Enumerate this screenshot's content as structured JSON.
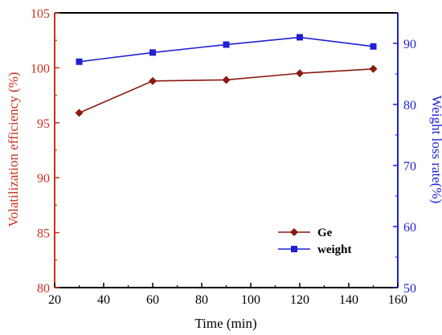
{
  "chart_data": {
    "type": "line",
    "xlabel": "Time (min)",
    "ylabel_left": "Volatilization efficiency (%)",
    "ylabel_right": "Weight loss rate(%)",
    "xlim": [
      20,
      160
    ],
    "ylim_left": [
      80,
      105
    ],
    "ylim_right": [
      50,
      95
    ],
    "x_ticks": [
      20,
      40,
      60,
      80,
      100,
      120,
      140,
      160
    ],
    "y_left_ticks": [
      80,
      85,
      90,
      95,
      100,
      105
    ],
    "y_right_ticks": [
      50,
      60,
      70,
      80,
      90
    ],
    "grid": false,
    "legend_position": "bottom-right",
    "colors": {
      "left_axis": "#c8321e",
      "right_axis": "#1f1fd6",
      "ge_line": "#8b1a10",
      "weight_line": "#1f1fd6"
    },
    "series": [
      {
        "name": "Ge",
        "axis": "left",
        "marker": "diamond",
        "x": [
          30,
          60,
          90,
          120,
          150
        ],
        "values": [
          95.9,
          98.8,
          98.9,
          99.5,
          99.9
        ]
      },
      {
        "name": "weight",
        "axis": "right",
        "marker": "square",
        "x": [
          30,
          60,
          90,
          120,
          150
        ],
        "values": [
          87.0,
          88.5,
          89.8,
          91.0,
          89.5
        ]
      }
    ]
  }
}
